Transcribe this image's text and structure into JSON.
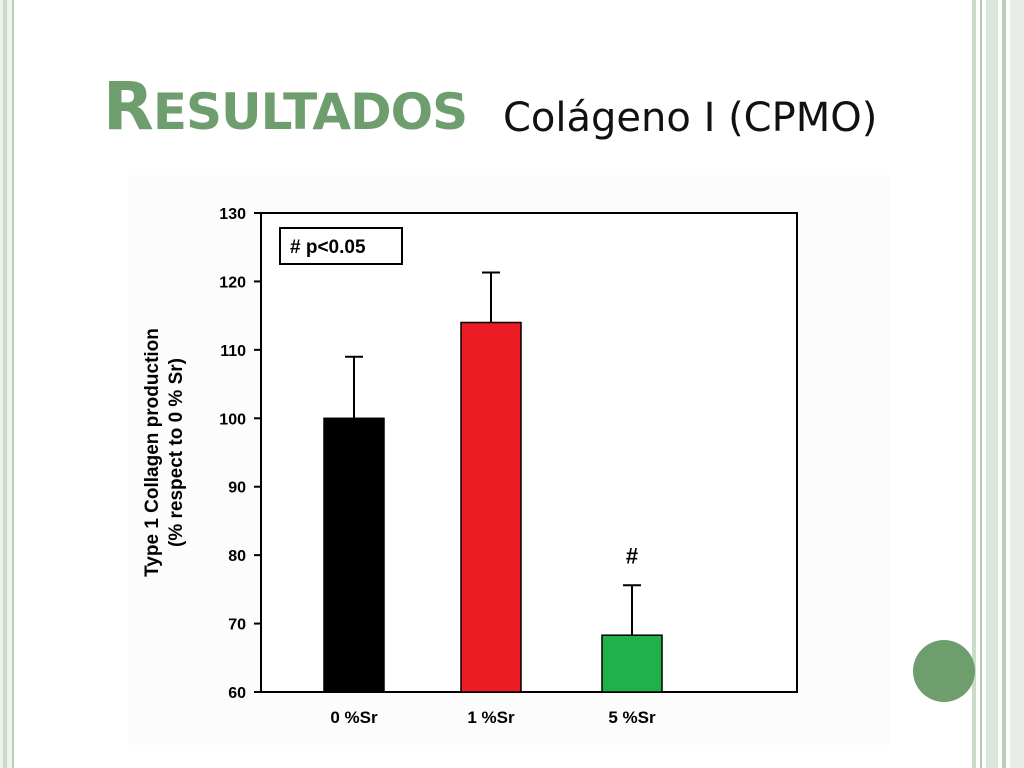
{
  "slide": {
    "title": "Resultados",
    "subtitle": "Colágeno I (CPMO)"
  },
  "colors": {
    "accent": "#6e9e6e",
    "frame": "#c9dbc9"
  },
  "chart_data": {
    "type": "bar",
    "categories": [
      "0 %Sr",
      "1 %Sr",
      "5 %Sr"
    ],
    "values": [
      100,
      114,
      68.3
    ],
    "errors": [
      9,
      7.3,
      7.3
    ],
    "colors": [
      "#000000",
      "#ec1c24",
      "#22b04b"
    ],
    "annotations": [
      "",
      "",
      "#"
    ],
    "legend_text": "# p<0.05",
    "legend_position": "top-left",
    "ylabel_line1": "Type 1 Collagen production",
    "ylabel_line2": "(% respect to 0 % Sr)",
    "xlabel": "",
    "ylim": [
      60,
      130
    ],
    "yticks": [
      60,
      70,
      80,
      90,
      100,
      110,
      120,
      130
    ],
    "grid": false
  }
}
